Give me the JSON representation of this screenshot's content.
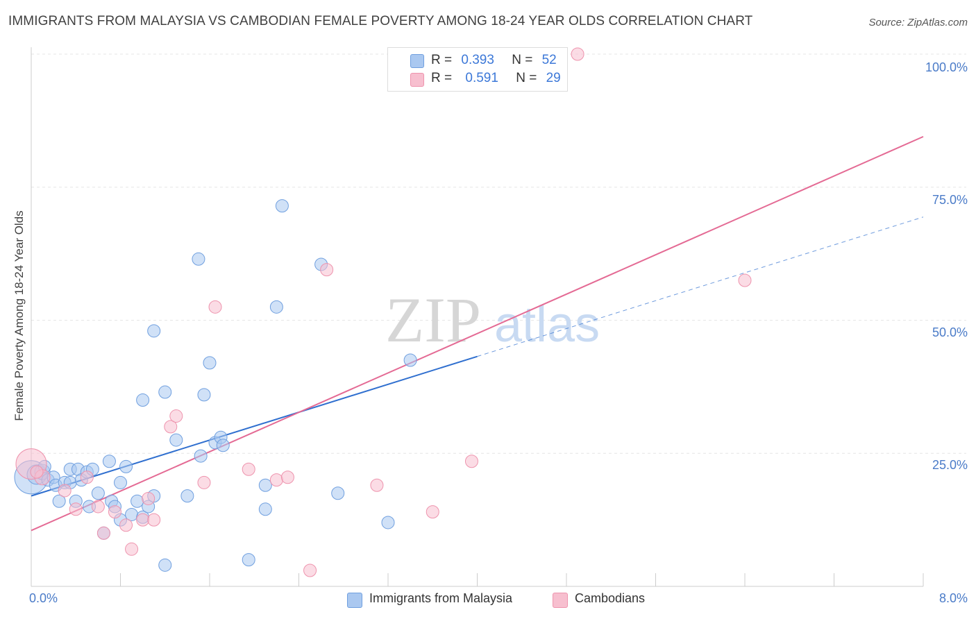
{
  "header": {
    "title": "IMMIGRANTS FROM MALAYSIA VS CAMBODIAN FEMALE POVERTY AMONG 18-24 YEAR OLDS CORRELATION CHART",
    "source": "Source: ZipAtlas.com"
  },
  "watermark": {
    "zip": "ZIP",
    "atlas": "atlas"
  },
  "legend": {
    "malaysia": {
      "r_label": "R =",
      "r_value": "0.393",
      "n_label": "N =",
      "n_value": "52"
    },
    "cambodian": {
      "r_label": "R =",
      "r_value": "0.591",
      "n_label": "N =",
      "n_value": "29"
    }
  },
  "colors": {
    "malaysia_fill": "#aac8f0",
    "malaysia_stroke": "#6f9fdf",
    "malaysia_line": "#2f6fcf",
    "cambodian_fill": "#f7bfcf",
    "cambodian_stroke": "#ee93ad",
    "cambodian_line": "#e46a94",
    "tick_text": "#4a7bc8",
    "grid": "#e6e6e6"
  },
  "chart_data": {
    "type": "scatter",
    "title": "IMMIGRANTS FROM MALAYSIA VS CAMBODIAN FEMALE POVERTY AMONG 18-24 YEAR OLDS CORRELATION CHART",
    "xlabel": "",
    "ylabel": "Female Poverty Among 18-24 Year Olds",
    "xlim": [
      0,
      8
    ],
    "ylim": [
      0,
      100
    ],
    "x_tick_labels": [
      "0.0%",
      "8.0%"
    ],
    "y_ticks": [
      25,
      50,
      75,
      100
    ],
    "y_tick_labels": [
      "25.0%",
      "50.0%",
      "75.0%",
      "100.0%"
    ],
    "grid": true,
    "legend_position": "top-center",
    "series": [
      {
        "name": "Immigrants from Malaysia",
        "r": 0.393,
        "n": 52,
        "trend": {
          "x0": 0.0,
          "y0": 17.0,
          "x1": 4.0,
          "y1": 43.2,
          "dashed_to_x": 8.0,
          "dashed_to_y": 69.4
        },
        "points": [
          [
            0.0,
            20.5,
            24
          ],
          [
            0.05,
            21.0,
            14
          ],
          [
            0.1,
            21.5,
            11
          ],
          [
            0.15,
            20.0,
            9
          ],
          [
            0.2,
            20.5,
            9
          ],
          [
            0.22,
            19.0,
            9
          ],
          [
            0.25,
            16.0,
            9
          ],
          [
            0.3,
            19.5,
            9
          ],
          [
            0.35,
            19.5,
            9
          ],
          [
            0.35,
            22.0,
            9
          ],
          [
            0.4,
            16.0,
            9
          ],
          [
            0.42,
            22.0,
            9
          ],
          [
            0.45,
            20.0,
            9
          ],
          [
            0.5,
            21.5,
            9
          ],
          [
            0.52,
            15.0,
            9
          ],
          [
            0.55,
            22.0,
            9
          ],
          [
            0.6,
            17.5,
            9
          ],
          [
            0.65,
            10.0,
            9
          ],
          [
            0.7,
            23.5,
            9
          ],
          [
            0.72,
            16.0,
            9
          ],
          [
            0.75,
            15.0,
            9
          ],
          [
            0.8,
            19.5,
            9
          ],
          [
            0.8,
            12.5,
            9
          ],
          [
            0.85,
            22.5,
            9
          ],
          [
            0.9,
            13.5,
            9
          ],
          [
            0.95,
            16.0,
            9
          ],
          [
            1.0,
            13.0,
            9
          ],
          [
            1.0,
            35.0,
            9
          ],
          [
            1.05,
            15.0,
            9
          ],
          [
            1.1,
            48.0,
            9
          ],
          [
            1.1,
            17.0,
            9
          ],
          [
            1.2,
            36.5,
            9
          ],
          [
            1.2,
            4.0,
            9
          ],
          [
            1.3,
            27.5,
            9
          ],
          [
            1.4,
            17.0,
            9
          ],
          [
            1.5,
            61.5,
            9
          ],
          [
            1.52,
            24.5,
            9
          ],
          [
            1.55,
            36.0,
            9
          ],
          [
            1.6,
            42.0,
            9
          ],
          [
            1.65,
            27.0,
            9
          ],
          [
            1.7,
            28.0,
            9
          ],
          [
            1.72,
            26.5,
            9
          ],
          [
            1.95,
            5.0,
            9
          ],
          [
            2.1,
            19.0,
            9
          ],
          [
            2.1,
            14.5,
            9
          ],
          [
            2.2,
            52.5,
            9
          ],
          [
            2.25,
            71.5,
            9
          ],
          [
            2.6,
            60.5,
            9
          ],
          [
            2.75,
            17.5,
            9
          ],
          [
            3.2,
            12.0,
            9
          ],
          [
            3.4,
            42.5,
            9
          ],
          [
            0.12,
            22.5,
            9
          ]
        ]
      },
      {
        "name": "Cambodians",
        "r": 0.591,
        "n": 29,
        "trend": {
          "x0": 0.0,
          "y0": 10.5,
          "x1": 8.0,
          "y1": 84.5
        },
        "points": [
          [
            0.0,
            23.0,
            22
          ],
          [
            0.1,
            20.5,
            11
          ],
          [
            0.3,
            18.0,
            9
          ],
          [
            0.4,
            14.5,
            9
          ],
          [
            0.5,
            20.5,
            9
          ],
          [
            0.6,
            15.0,
            9
          ],
          [
            0.65,
            10.0,
            9
          ],
          [
            0.75,
            14.0,
            9
          ],
          [
            0.85,
            11.5,
            9
          ],
          [
            0.9,
            7.0,
            9
          ],
          [
            1.0,
            12.5,
            9
          ],
          [
            1.05,
            16.5,
            9
          ],
          [
            1.1,
            12.5,
            9
          ],
          [
            1.25,
            30.0,
            9
          ],
          [
            1.3,
            32.0,
            9
          ],
          [
            1.55,
            19.5,
            9
          ],
          [
            1.65,
            52.5,
            9
          ],
          [
            1.95,
            22.0,
            9
          ],
          [
            2.2,
            20.0,
            9
          ],
          [
            2.3,
            20.5,
            9
          ],
          [
            2.5,
            3.0,
            9
          ],
          [
            2.65,
            59.5,
            9
          ],
          [
            3.1,
            19.0,
            9
          ],
          [
            3.6,
            14.0,
            9
          ],
          [
            3.95,
            23.5,
            9
          ],
          [
            4.9,
            100.0,
            9
          ],
          [
            6.4,
            57.5,
            9
          ],
          [
            3.35,
            100.0,
            9
          ],
          [
            0.05,
            21.5,
            9
          ]
        ]
      }
    ]
  },
  "bottom_legend": {
    "malaysia_label": "Immigrants from Malaysia",
    "cambodian_label": "Cambodians"
  }
}
